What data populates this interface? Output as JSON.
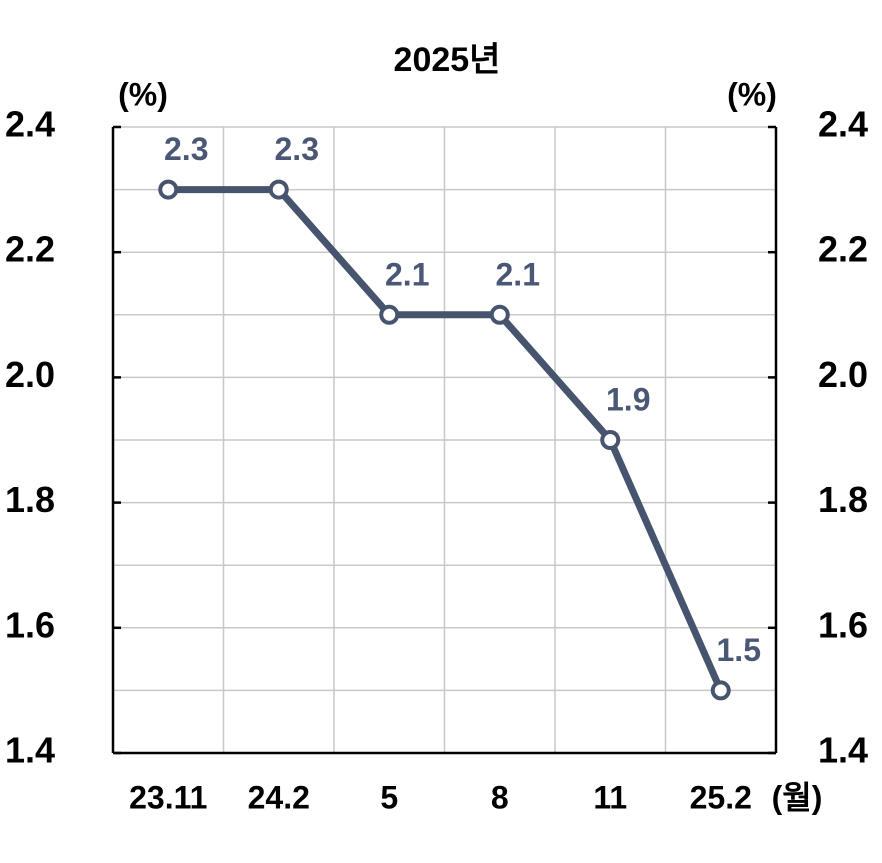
{
  "chart_data": {
    "type": "line",
    "title": "2025년",
    "y_label": "(%)",
    "y2_label": "(%)",
    "x_label": "(월)",
    "categories": [
      "23.11",
      "24.2",
      "5",
      "8",
      "11",
      "25.2"
    ],
    "series": [
      {
        "name": "2025년",
        "color": "#47546e",
        "values": [
          2.3,
          2.3,
          2.1,
          2.1,
          1.9,
          1.5
        ]
      }
    ],
    "ylim": [
      1.4,
      2.4
    ],
    "yticks": [
      1.4,
      1.6,
      1.8,
      {
        "value": 2,
        "label": "2.0"
      },
      2.2,
      2.4
    ],
    "minor_yticks": [
      1.5,
      1.7,
      1.9,
      2.1,
      2.3
    ],
    "y2lim": [
      1.4,
      2.4
    ],
    "y2ticks": [
      1.4,
      1.6,
      1.8,
      {
        "value": 2,
        "label": "2.0"
      },
      2.2,
      2.4
    ],
    "grid": true,
    "data_labels": true
  }
}
